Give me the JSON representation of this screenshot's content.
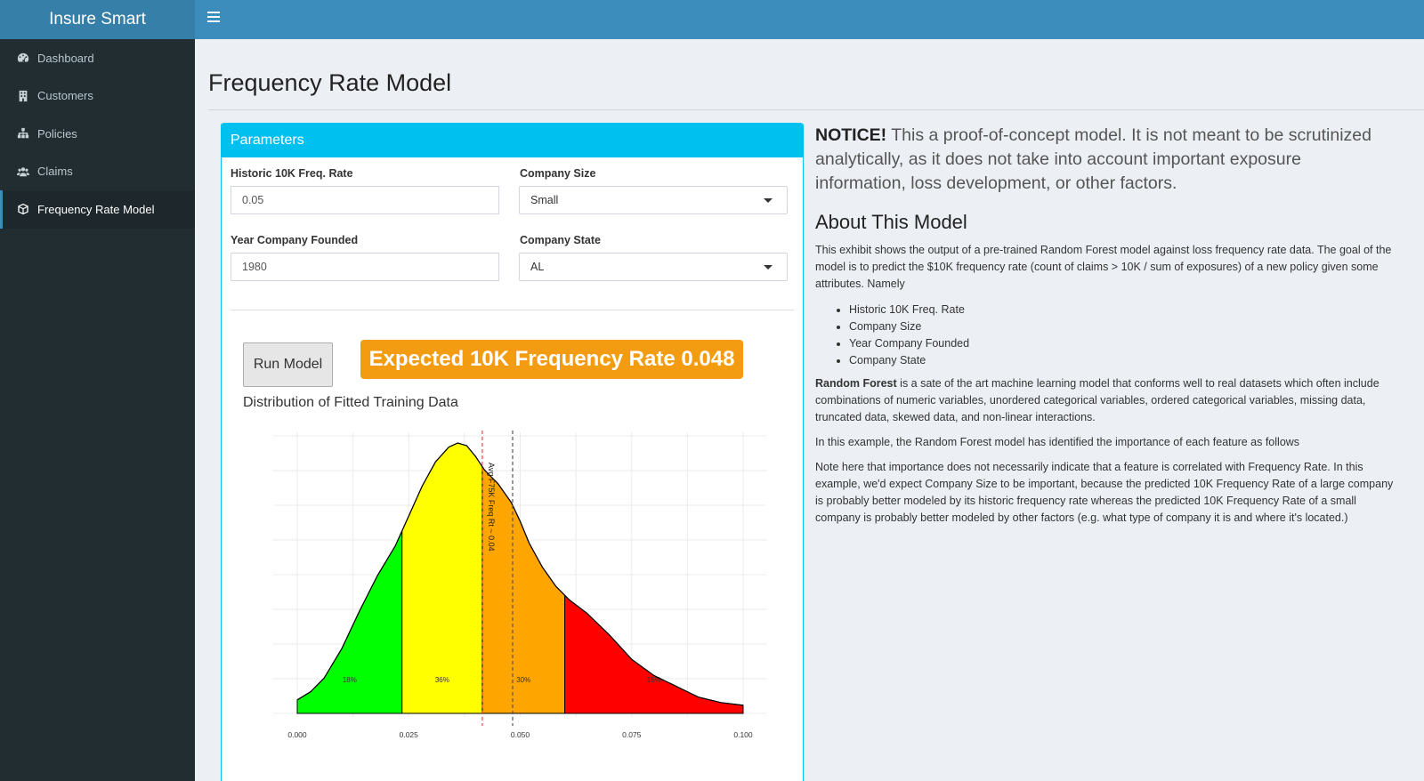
{
  "app": {
    "title": "Insure Smart"
  },
  "sidebar": {
    "items": [
      {
        "label": "Dashboard",
        "icon": "dashboard-icon",
        "active": false
      },
      {
        "label": "Customers",
        "icon": "building-icon",
        "active": false
      },
      {
        "label": "Policies",
        "icon": "sitemap-icon",
        "active": false
      },
      {
        "label": "Claims",
        "icon": "users-icon",
        "active": false
      },
      {
        "label": "Frequency Rate Model",
        "icon": "cube-icon",
        "active": true
      }
    ]
  },
  "page": {
    "title": "Frequency Rate Model"
  },
  "parameters": {
    "header": "Parameters",
    "historic_label": "Historic 10K Freq. Rate",
    "historic_value": "0.05",
    "company_size_label": "Company Size",
    "company_size_value": "Small",
    "year_label": "Year Company Founded",
    "year_value": "1980",
    "state_label": "Company State",
    "state_value": "AL",
    "run_button": "Run Model",
    "result_text": "Expected 10K Frequency Rate 0.048",
    "plot_title": "Distribution of Fitted Training Data"
  },
  "colors": {
    "header_bg": "#3c8dbc",
    "sidebar_bg": "#222d32",
    "box_header": "#00c0ef",
    "result_bg": "#f39c12",
    "band_green": "#00ff00",
    "band_yellow": "#ffff00",
    "band_orange": "#ffa500",
    "band_red": "#ff0000"
  },
  "chart_data": {
    "type": "area",
    "x_ticks": [
      "0.000",
      "0.025",
      "0.050",
      "0.075",
      "0.100"
    ],
    "xlim": [
      0,
      0.1
    ],
    "bands": [
      {
        "from": 0.0,
        "to": 0.0235,
        "label": "18%",
        "color": "#00ff00"
      },
      {
        "from": 0.0235,
        "to": 0.0415,
        "label": "36%",
        "color": "#ffff00"
      },
      {
        "from": 0.0415,
        "to": 0.06,
        "label": "30%",
        "color": "#ffa500"
      },
      {
        "from": 0.06,
        "to": 0.1,
        "label": "15%",
        "color": "#ff0000"
      }
    ],
    "density": {
      "x": [
        0,
        0.003,
        0.006,
        0.01,
        0.014,
        0.018,
        0.022,
        0.025,
        0.028,
        0.031,
        0.034,
        0.036,
        0.038,
        0.04,
        0.042,
        0.045,
        0.048,
        0.05,
        0.052,
        0.055,
        0.058,
        0.061,
        0.065,
        0.07,
        0.075,
        0.08,
        0.085,
        0.09,
        0.095,
        0.1
      ],
      "y": [
        0.05,
        0.08,
        0.13,
        0.24,
        0.38,
        0.51,
        0.62,
        0.73,
        0.84,
        0.93,
        0.985,
        1.0,
        0.99,
        0.95,
        0.9,
        0.85,
        0.78,
        0.71,
        0.63,
        0.54,
        0.47,
        0.42,
        0.37,
        0.29,
        0.2,
        0.14,
        0.1,
        0.06,
        0.04,
        0.03
      ]
    },
    "vlines": [
      {
        "x": 0.0415,
        "color": "#e8474a",
        "label": ""
      },
      {
        "x": 0.0483,
        "color": "#555555",
        "label": "Avg F75K Freq Rt ~ 0.04"
      }
    ],
    "grid": true
  },
  "notice": {
    "strong": "NOTICE!",
    "text": " This a proof-of-concept model. It is not meant to be scrutinized analytically, as it does not take into account important exposure information, loss development, or other factors."
  },
  "about": {
    "title": "About This Model",
    "intro": "This exhibit shows the output of a pre-trained Random Forest model against loss frequency rate data. The goal of the model is to predict the $10K frequency rate (count of claims > 10K / sum of exposures) of a new policy given some attributes. Namely",
    "attributes": [
      "Historic 10K Freq. Rate",
      "Company Size",
      "Year Company Founded",
      "Company State"
    ],
    "rf_strong": "Random Forest",
    "rf_text": " is a sate of the art machine learning model that conforms well to real datasets which often include combinations of numeric variables, unordered categorical variables, ordered categorical variables, missing data, truncated data, skewed data, and non-linear interactions.",
    "example_text": "In this example, the Random Forest model has identified the importance of each feature as follows",
    "note_text": "Note here that importance does not necessarily indicate that a feature is correlated with Frequency Rate. In this example, we'd expect Company Size to be important, because the predicted 10K Frequency Rate of a large company is probably better modeled by its historic frequency rate whereas the predicted 10K Frequency Rate of a small company is probably better modeled by other factors (e.g. what type of company it is and where it's located.)"
  }
}
